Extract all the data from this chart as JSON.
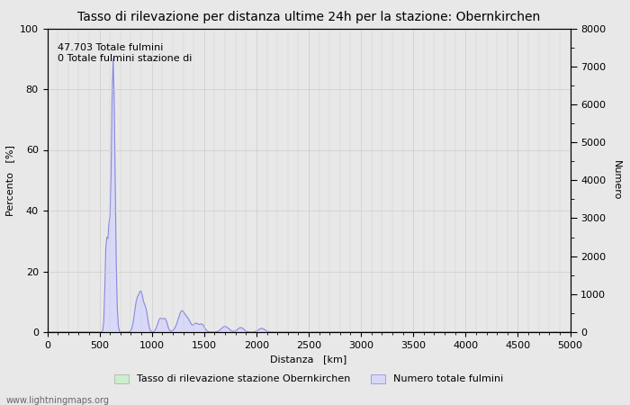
{
  "title": "Tasso di rilevazione per distanza ultime 24h per la stazione: Obernkirchen",
  "xlabel": "Distanza   [km]",
  "ylabel_left": "Percento   [%]",
  "ylabel_right": "Numero",
  "annotation_lines": [
    "47.703 Totale fulmini",
    "0 Totale fulmini stazione di"
  ],
  "xlim": [
    0,
    5000
  ],
  "ylim_left": [
    0,
    100
  ],
  "ylim_right": [
    0,
    8000
  ],
  "xticks": [
    0,
    500,
    1000,
    1500,
    2000,
    2500,
    3000,
    3500,
    4000,
    4500,
    5000
  ],
  "yticks_left": [
    0,
    20,
    40,
    60,
    80,
    100
  ],
  "yticks_right": [
    0,
    1000,
    2000,
    3000,
    4000,
    5000,
    6000,
    7000,
    8000
  ],
  "background_color": "#e8e8e8",
  "plot_bg_color": "#ffffff",
  "grid_color": "#cccccc",
  "line_color": "#8888dd",
  "fill_color_blue": "#d8d8f8",
  "fill_color_green": "#cceecc",
  "legend_label_green": "Tasso di rilevazione stazione Obernkirchen",
  "legend_label_blue": "Numero totale fulmini",
  "watermark": "www.lightningmaps.org",
  "title_fontsize": 10,
  "label_fontsize": 8,
  "tick_fontsize": 8,
  "annotation_fontsize": 8
}
